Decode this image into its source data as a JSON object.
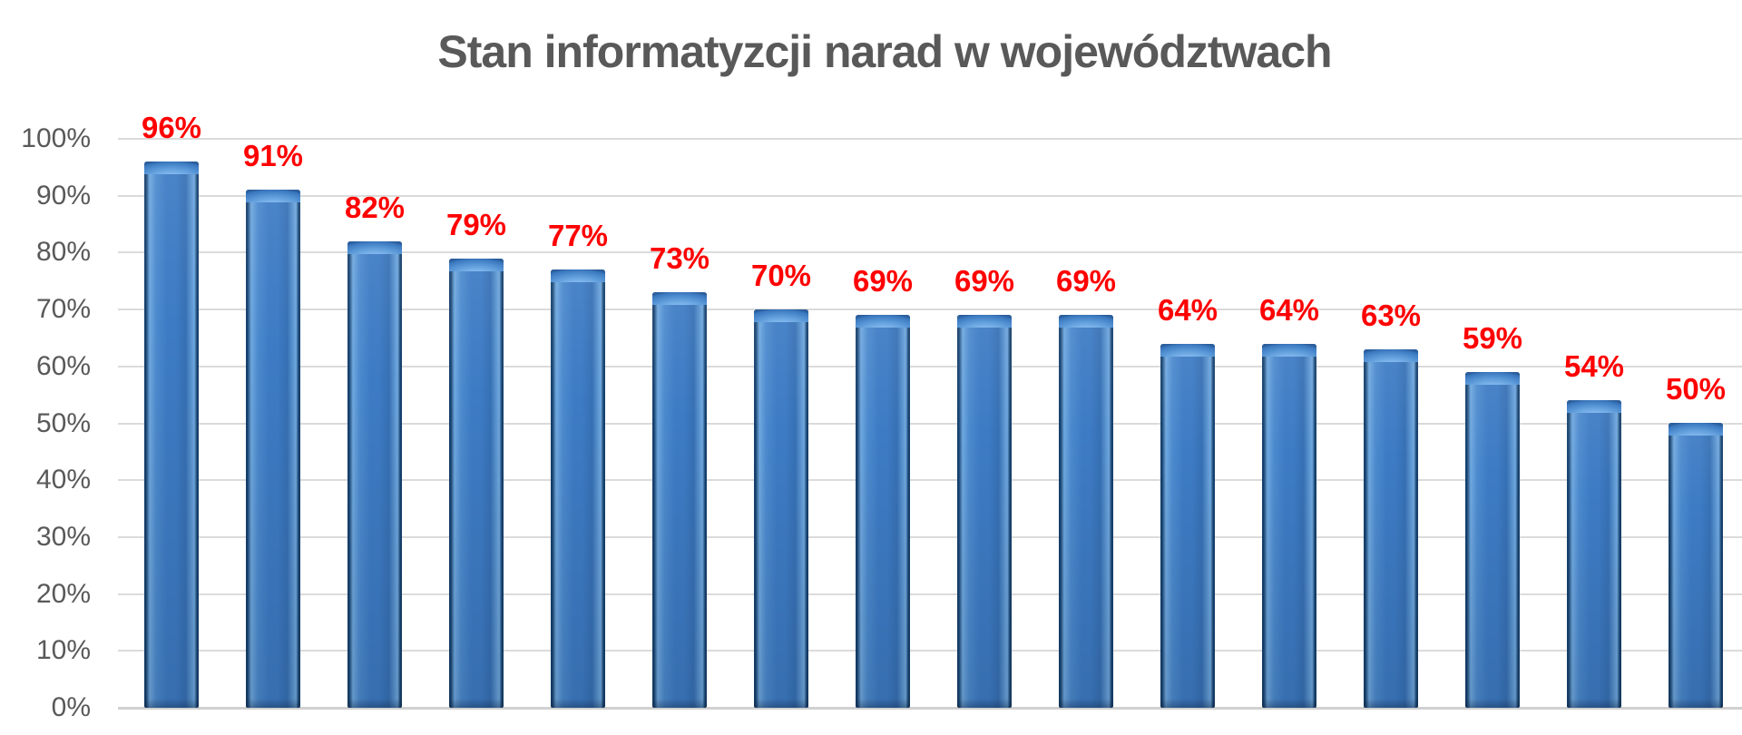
{
  "chart_data": {
    "type": "bar",
    "title": "Stan informatyzcji narad w województwach",
    "values": [
      96,
      91,
      82,
      79,
      77,
      73,
      70,
      69,
      69,
      69,
      64,
      64,
      63,
      59,
      54,
      50
    ],
    "bar_labels": [
      "96%",
      "91%",
      "82%",
      "79%",
      "77%",
      "73%",
      "70%",
      "69%",
      "69%",
      "69%",
      "64%",
      "64%",
      "63%",
      "59%",
      "54%",
      "50%"
    ],
    "xlabel": "",
    "ylabel": "",
    "ylim": [
      0,
      100
    ],
    "ytick_step": 10,
    "yticks": [
      "100%",
      "90%",
      "80%",
      "70%",
      "60%",
      "50%",
      "40%",
      "30%",
      "20%",
      "10%",
      "0%"
    ],
    "grid": true,
    "legend": false,
    "x_axis_category_labels_visible": false,
    "data_label_position": "above-bar",
    "colors": {
      "bar_fill": "#3D7BC4",
      "bar_edge": "#16416E",
      "bar_highlight": "#6FA8DF",
      "bar_shine": "#A8D2F5",
      "data_label": "#FF0000",
      "title": "#595959",
      "tick_label": "#595959",
      "gridline": "#DBDBDB",
      "axis_line": "#D0D0D0",
      "background": "#FFFFFF"
    }
  }
}
